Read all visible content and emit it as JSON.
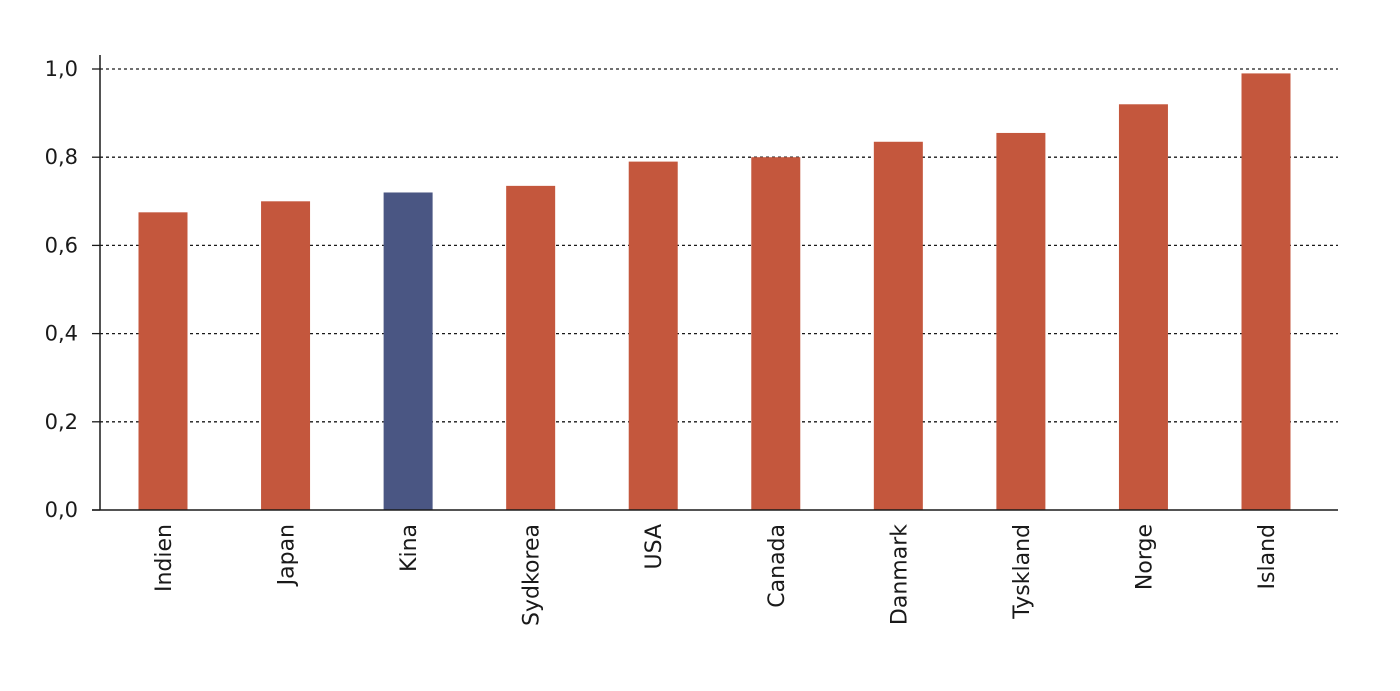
{
  "chart_data": {
    "type": "bar",
    "title": "",
    "xlabel": "",
    "ylabel": "",
    "categories": [
      "Indien",
      "Japan",
      "Kina",
      "Sydkorea",
      "USA",
      "Canada",
      "Danmark",
      "Tyskland",
      "Norge",
      "Island"
    ],
    "values": [
      0.675,
      0.7,
      0.72,
      0.735,
      0.79,
      0.8,
      0.835,
      0.855,
      0.92,
      0.99
    ],
    "highlight_category": "Kina",
    "ylim": [
      0,
      1.0
    ],
    "yticks": [
      0.0,
      0.2,
      0.4,
      0.6,
      0.8,
      1.0
    ],
    "ytick_labels": [
      "0,0",
      "0,2",
      "0,4",
      "0,6",
      "0,8",
      "1,0"
    ],
    "grid": "horizontal dotted",
    "legend": "none",
    "colors": {
      "bar": "#C4573D",
      "highlight": "#4A5683",
      "axis": "#1a1a1a",
      "grid": "#1a1a1a"
    }
  }
}
